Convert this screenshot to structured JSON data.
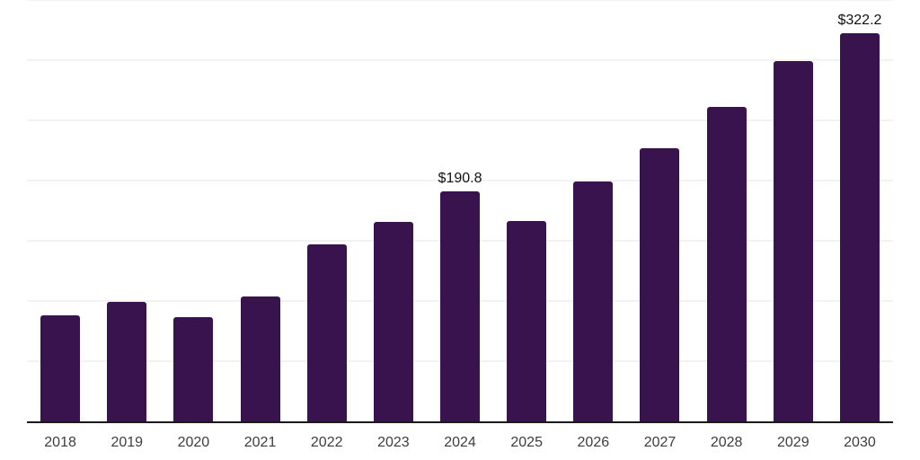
{
  "chart_data": {
    "type": "bar",
    "title": "",
    "xlabel": "",
    "ylabel": "",
    "categories": [
      "2018",
      "2019",
      "2020",
      "2021",
      "2022",
      "2023",
      "2024",
      "2025",
      "2026",
      "2027",
      "2028",
      "2029",
      "2030"
    ],
    "values": [
      87.9,
      99.3,
      86.8,
      103.6,
      146.9,
      165.5,
      190.8,
      166.7,
      199.1,
      227.2,
      261.1,
      299.0,
      322.2
    ],
    "data_labels": [
      "",
      "",
      "",
      "",
      "",
      "",
      "$190.8",
      "",
      "",
      "",
      "",
      "",
      "$322.2"
    ],
    "ylim": [
      0,
      350
    ],
    "gridline_step": 50,
    "grid": true,
    "legend": false,
    "bar_color": "#38134e",
    "axis_line_color": "#1a1a1a",
    "gridline_color": "#f3f3f3",
    "tick_label_color": "#3d3d3d",
    "data_label_color": "#111111"
  }
}
